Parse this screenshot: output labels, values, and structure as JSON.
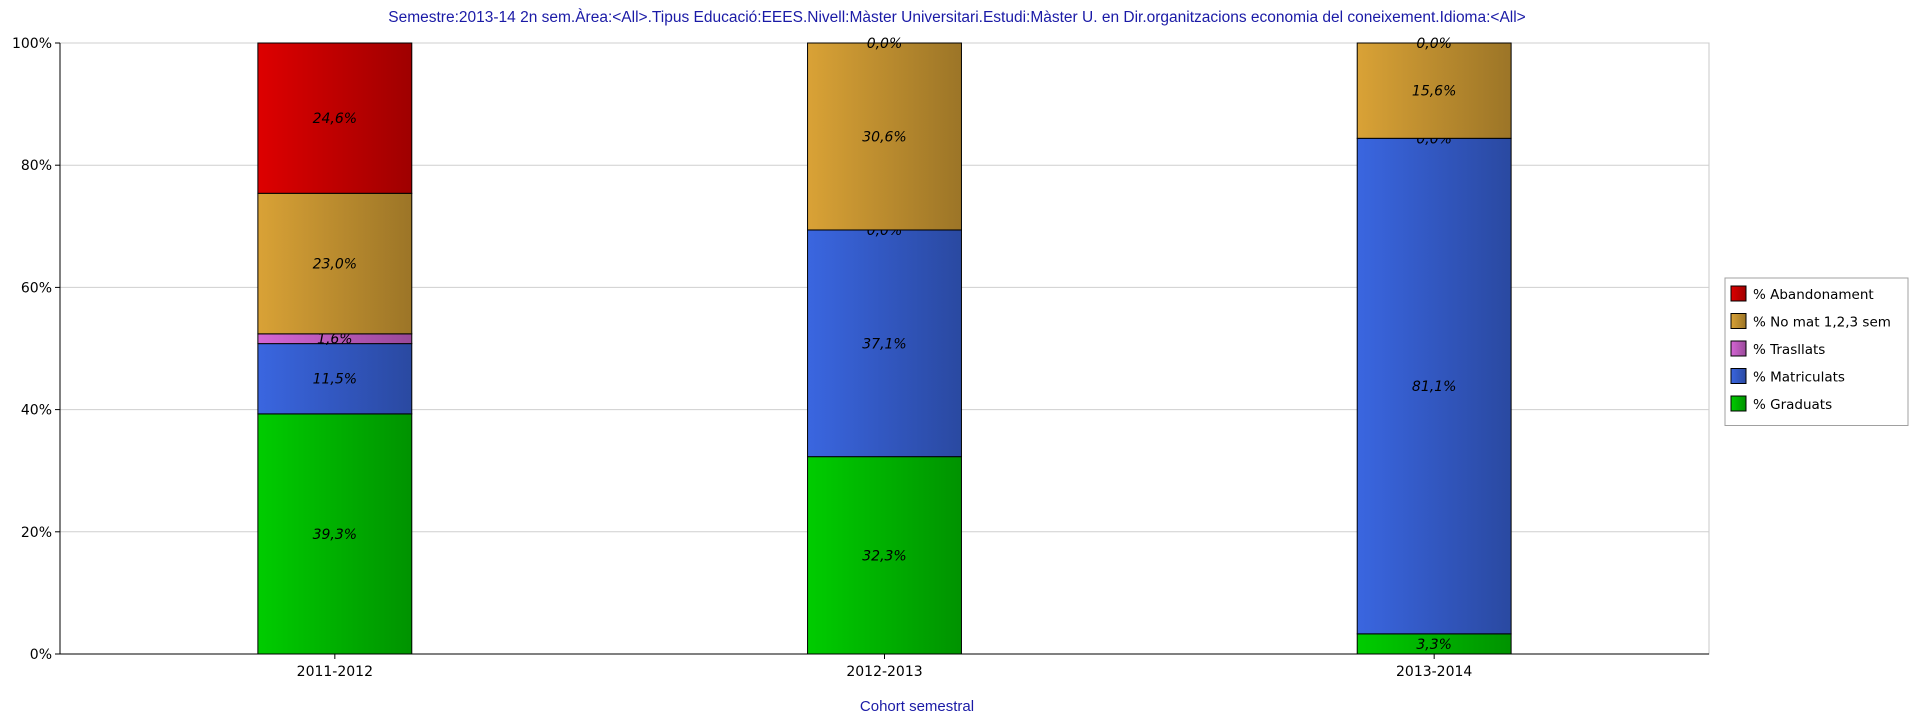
{
  "chart_data": {
    "type": "bar",
    "stacked": true,
    "title": "Semestre:2013-14 2n sem.Àrea:<All>.Tipus Educació:EEES.Nivell:Màster Universitari.Estudi:Màster U. en Dir.organitzacions economia del coneixement.Idioma:<All>",
    "xlabel": "Cohort semestral",
    "ylabel": "",
    "ylim": [
      0,
      100
    ],
    "yticks": [
      {
        "value": 0,
        "label": "0%"
      },
      {
        "value": 20,
        "label": "20%"
      },
      {
        "value": 40,
        "label": "40%"
      },
      {
        "value": 60,
        "label": "60%"
      },
      {
        "value": 80,
        "label": "80%"
      },
      {
        "value": 100,
        "label": "100%"
      }
    ],
    "grid": true,
    "legend_position": "right",
    "categories": [
      "2011-2012",
      "2012-2013",
      "2013-2014"
    ],
    "series": [
      {
        "name": "% Graduats",
        "color": "#00cc00",
        "values": [
          39.3,
          32.3,
          3.3
        ],
        "labels": [
          "39,3%",
          "32,3%",
          "3,3%"
        ]
      },
      {
        "name": "% Matriculats",
        "color": "#3a66e0",
        "values": [
          11.5,
          37.1,
          81.1
        ],
        "labels": [
          "11,5%",
          "37,1%",
          "81,1%"
        ]
      },
      {
        "name": "% Trasllats",
        "color": "#d566d5",
        "values": [
          1.6,
          0.0,
          0.0
        ],
        "labels": [
          "1,6%",
          "0,0%",
          "0,0%"
        ]
      },
      {
        "name": "% No mat 1,2,3 sem",
        "color": "#d9a236",
        "values": [
          23.0,
          30.6,
          15.6
        ],
        "labels": [
          "23,0%",
          "30,6%",
          "15,6%"
        ]
      },
      {
        "name": "% Abandonament",
        "color": "#dd0000",
        "values": [
          24.6,
          0.0,
          0.0
        ],
        "labels": [
          "24,6%",
          "0,0%",
          "0,0%"
        ]
      }
    ],
    "legend_order": [
      "% Abandonament",
      "% No mat 1,2,3 sem",
      "% Trasllats",
      "% Matriculats",
      "% Graduats"
    ]
  }
}
